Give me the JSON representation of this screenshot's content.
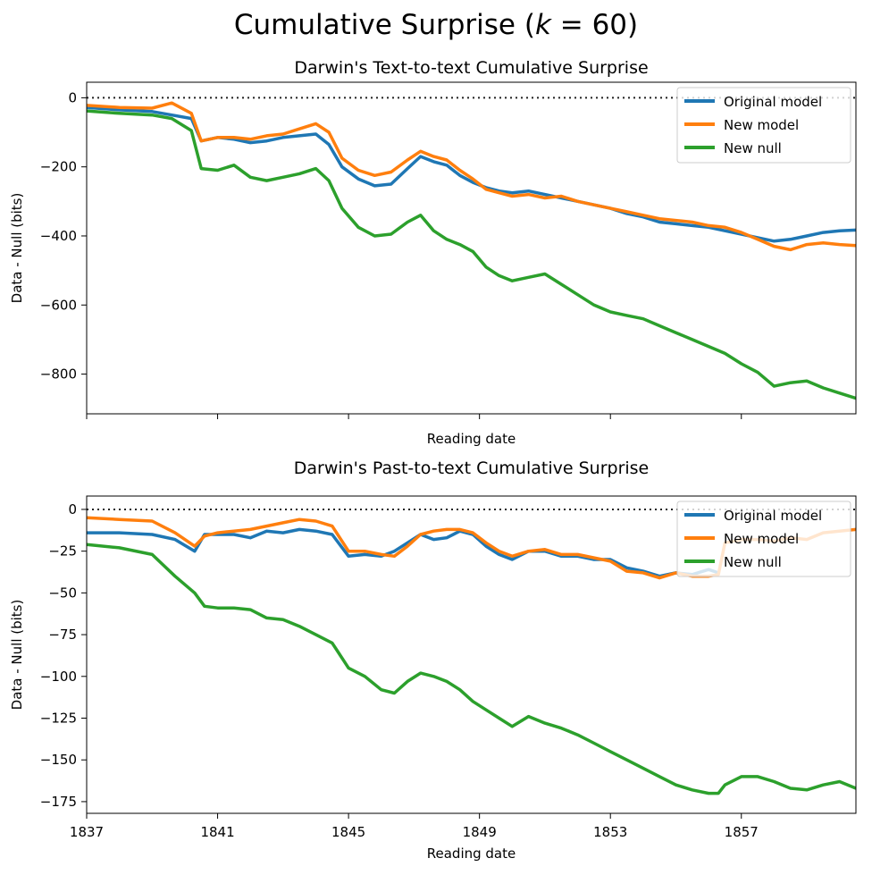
{
  "figure": {
    "suptitle_main": "Cumulative Surprise (",
    "suptitle_var": "k",
    "suptitle_rest": " = 60)"
  },
  "colors": {
    "original": "#1f77b4",
    "new_model": "#ff7f0e",
    "new_null": "#2ca02c",
    "zero_line": "#222222"
  },
  "chart_data": [
    {
      "type": "line",
      "title": "Darwin's Text-to-text Cumulative Surprise",
      "xlabel": "Reading date",
      "ylabel": "Data - Null (bits)",
      "xlim": [
        1837,
        1860.5
      ],
      "ylim": [
        -915,
        45
      ],
      "yticks": [
        0,
        -200,
        -400,
        -600,
        -800
      ],
      "xticks": [
        1837,
        1841,
        1845,
        1849,
        1853,
        1857
      ],
      "show_xtick_labels": false,
      "zero_line": true,
      "legend": "top-right",
      "series": [
        {
          "name": "Original model",
          "color_key": "original",
          "x": [
            1837,
            1838,
            1839,
            1839.6,
            1840.2,
            1840.5,
            1841,
            1841.5,
            1842,
            1842.5,
            1843,
            1843.5,
            1844,
            1844.4,
            1844.8,
            1845.3,
            1845.8,
            1846.3,
            1846.8,
            1847.2,
            1847.6,
            1848,
            1848.4,
            1848.8,
            1849.2,
            1849.6,
            1850,
            1850.5,
            1851,
            1851.5,
            1852,
            1852.5,
            1853,
            1853.5,
            1854,
            1854.5,
            1855,
            1855.5,
            1856,
            1856.5,
            1857,
            1857.5,
            1858,
            1858.5,
            1859,
            1859.5,
            1860,
            1860.5
          ],
          "values": [
            -28,
            -35,
            -40,
            -50,
            -60,
            -125,
            -115,
            -120,
            -130,
            -125,
            -115,
            -110,
            -105,
            -135,
            -200,
            -235,
            -255,
            -250,
            -205,
            -170,
            -185,
            -195,
            -225,
            -245,
            -260,
            -270,
            -275,
            -270,
            -280,
            -290,
            -300,
            -310,
            -320,
            -335,
            -345,
            -360,
            -365,
            -370,
            -375,
            -385,
            -395,
            -405,
            -415,
            -410,
            -400,
            -390,
            -385,
            -383
          ]
        },
        {
          "name": "New model",
          "color_key": "new_model",
          "x": [
            1837,
            1838,
            1839,
            1839.6,
            1840.2,
            1840.5,
            1841,
            1841.5,
            1842,
            1842.5,
            1843,
            1843.5,
            1844,
            1844.4,
            1844.8,
            1845.3,
            1845.8,
            1846.3,
            1846.8,
            1847.2,
            1847.6,
            1848,
            1848.4,
            1848.8,
            1849.2,
            1849.6,
            1850,
            1850.5,
            1851,
            1851.5,
            1852,
            1852.5,
            1853,
            1853.5,
            1854,
            1854.5,
            1855,
            1855.5,
            1856,
            1856.5,
            1857,
            1857.5,
            1858,
            1858.5,
            1859,
            1859.5,
            1860,
            1860.5
          ],
          "values": [
            -22,
            -28,
            -30,
            -15,
            -45,
            -125,
            -115,
            -115,
            -120,
            -110,
            -105,
            -90,
            -75,
            -100,
            -175,
            -210,
            -225,
            -215,
            -180,
            -155,
            -170,
            -180,
            -210,
            -235,
            -265,
            -275,
            -285,
            -280,
            -290,
            -285,
            -300,
            -310,
            -320,
            -330,
            -340,
            -350,
            -355,
            -360,
            -370,
            -375,
            -390,
            -410,
            -430,
            -440,
            -425,
            -420,
            -425,
            -428
          ]
        },
        {
          "name": "New null",
          "color_key": "new_null",
          "x": [
            1837,
            1838,
            1839,
            1839.6,
            1840.2,
            1840.5,
            1841,
            1841.5,
            1842,
            1842.5,
            1843,
            1843.5,
            1844,
            1844.4,
            1844.8,
            1845.3,
            1845.8,
            1846.3,
            1846.8,
            1847.2,
            1847.6,
            1848,
            1848.4,
            1848.8,
            1849.2,
            1849.6,
            1850,
            1850.5,
            1851,
            1851.5,
            1852,
            1852.5,
            1853,
            1853.5,
            1854,
            1854.5,
            1855,
            1855.5,
            1856,
            1856.5,
            1857,
            1857.5,
            1858,
            1858.5,
            1859,
            1859.5,
            1860,
            1860.5
          ],
          "values": [
            -38,
            -45,
            -50,
            -60,
            -95,
            -205,
            -210,
            -195,
            -230,
            -240,
            -230,
            -220,
            -205,
            -240,
            -320,
            -375,
            -400,
            -395,
            -360,
            -340,
            -385,
            -410,
            -425,
            -445,
            -490,
            -515,
            -530,
            -520,
            -510,
            -540,
            -570,
            -600,
            -620,
            -630,
            -640,
            -660,
            -680,
            -700,
            -720,
            -740,
            -770,
            -795,
            -835,
            -825,
            -820,
            -840,
            -855,
            -870
          ]
        }
      ]
    },
    {
      "type": "line",
      "title": "Darwin's Past-to-text Cumulative Surprise",
      "xlabel": "Reading date",
      "ylabel": "Data - Null (bits)",
      "xlim": [
        1837,
        1860.5
      ],
      "ylim": [
        -182,
        8
      ],
      "yticks": [
        0,
        -25,
        -50,
        -75,
        -100,
        -125,
        -150,
        -175
      ],
      "xticks": [
        1837,
        1841,
        1845,
        1849,
        1853,
        1857
      ],
      "xtick_labels": [
        "1837",
        "1841",
        "1845",
        "1849",
        "1853",
        "1857"
      ],
      "show_xtick_labels": true,
      "zero_line": true,
      "legend": "top-right",
      "series": [
        {
          "name": "Original model",
          "color_key": "original",
          "x": [
            1837,
            1838,
            1839,
            1839.7,
            1840.3,
            1840.6,
            1841,
            1841.5,
            1842,
            1842.5,
            1843,
            1843.5,
            1844,
            1844.5,
            1845,
            1845.5,
            1846,
            1846.4,
            1846.8,
            1847.2,
            1847.6,
            1848,
            1848.4,
            1848.8,
            1849.2,
            1849.6,
            1850,
            1850.5,
            1851,
            1851.5,
            1852,
            1852.5,
            1853,
            1853.5,
            1854,
            1854.5,
            1855,
            1855.5,
            1856,
            1856.3
          ],
          "values": [
            -14,
            -14,
            -15,
            -18,
            -25,
            -15,
            -15,
            -15,
            -17,
            -13,
            -14,
            -12,
            -13,
            -15,
            -28,
            -27,
            -28,
            -25,
            -20,
            -15,
            -18,
            -17,
            -13,
            -15,
            -22,
            -27,
            -30,
            -25,
            -25,
            -28,
            -28,
            -30,
            -30,
            -35,
            -37,
            -40,
            -38,
            -39,
            -36,
            -38
          ]
        },
        {
          "name": "New model",
          "color_key": "new_model",
          "x": [
            1837,
            1838,
            1839,
            1839.7,
            1840.3,
            1840.6,
            1841,
            1841.5,
            1842,
            1842.5,
            1843,
            1843.5,
            1844,
            1844.5,
            1845,
            1845.5,
            1846,
            1846.4,
            1846.8,
            1847.2,
            1847.6,
            1848,
            1848.4,
            1848.8,
            1849.2,
            1849.6,
            1850,
            1850.5,
            1851,
            1851.5,
            1852,
            1852.5,
            1853,
            1853.5,
            1854,
            1854.5,
            1855,
            1855.5,
            1856,
            1856.3,
            1856.5,
            1857,
            1857.5,
            1858,
            1858.5,
            1859,
            1859.5,
            1860,
            1860.5
          ],
          "values": [
            -5,
            -6,
            -7,
            -14,
            -22,
            -16,
            -14,
            -13,
            -12,
            -10,
            -8,
            -6,
            -7,
            -10,
            -25,
            -25,
            -27,
            -28,
            -22,
            -15,
            -13,
            -12,
            -12,
            -14,
            -20,
            -25,
            -28,
            -25,
            -24,
            -27,
            -27,
            -29,
            -31,
            -37,
            -38,
            -41,
            -38,
            -40,
            -40,
            -39,
            -20,
            -18,
            -18,
            -19,
            -17,
            -18,
            -14,
            -13,
            -12
          ]
        },
        {
          "name": "New null",
          "color_key": "new_null",
          "x": [
            1837,
            1838,
            1839,
            1839.7,
            1840.3,
            1840.6,
            1841,
            1841.5,
            1842,
            1842.5,
            1843,
            1843.5,
            1844,
            1844.5,
            1845,
            1845.5,
            1846,
            1846.4,
            1846.8,
            1847.2,
            1847.6,
            1848,
            1848.4,
            1848.8,
            1849.2,
            1849.6,
            1850,
            1850.5,
            1851,
            1851.5,
            1852,
            1852.5,
            1853,
            1853.5,
            1854,
            1854.5,
            1855,
            1855.5,
            1856,
            1856.3,
            1856.5,
            1857,
            1857.5,
            1858,
            1858.5,
            1859,
            1859.5,
            1860,
            1860.5
          ],
          "values": [
            -21,
            -23,
            -27,
            -40,
            -50,
            -58,
            -59,
            -59,
            -60,
            -65,
            -66,
            -70,
            -75,
            -80,
            -95,
            -100,
            -108,
            -110,
            -103,
            -98,
            -100,
            -103,
            -108,
            -115,
            -120,
            -125,
            -130,
            -124,
            -128,
            -131,
            -135,
            -140,
            -145,
            -150,
            -155,
            -160,
            -165,
            -168,
            -170,
            -170,
            -165,
            -160,
            -160,
            -163,
            -167,
            -168,
            -165,
            -163,
            -167
          ]
        }
      ]
    }
  ]
}
